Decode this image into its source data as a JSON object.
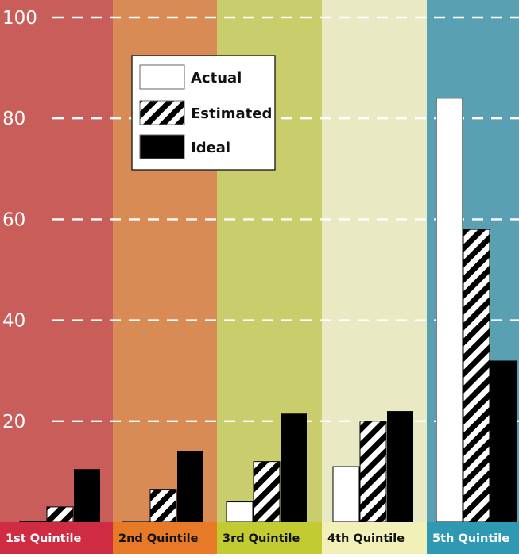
{
  "chart_data": {
    "type": "bar",
    "categories": [
      "1st  Quintile",
      "2nd Quintile",
      "3rd Quintile",
      "4th Quintile",
      "5th Quintile"
    ],
    "series": [
      {
        "name": "Actual",
        "values": [
          0.1,
          0.2,
          4,
          11,
          84
        ]
      },
      {
        "name": "Estimated",
        "values": [
          3,
          6.5,
          12,
          20,
          58
        ]
      },
      {
        "name": "Ideal",
        "values": [
          10.5,
          14,
          21.5,
          22,
          32
        ]
      }
    ],
    "ylim": [
      0,
      100
    ],
    "yticks": [
      20,
      40,
      60,
      80,
      100
    ],
    "grid": true,
    "legend_position": "top-left",
    "colors": {
      "band_backgrounds": [
        "#c85d5a",
        "#d98b56",
        "#c9cd6c",
        "#e9e9c4",
        "#5aa0b3"
      ],
      "label_backgrounds": [
        "#cf2b43",
        "#e77a26",
        "#c2cc32",
        "#f0f0b8",
        "#2f98b2"
      ],
      "label_text": [
        "#ffffff",
        "#111111",
        "#111111",
        "#111111",
        "#ffffff"
      ],
      "actual": "#ffffff",
      "estimated_stripes": [
        "#000000",
        "#ffffff"
      ],
      "ideal": "#000000",
      "grid": "#ffffff",
      "axis_labels": "#ffffff"
    }
  }
}
